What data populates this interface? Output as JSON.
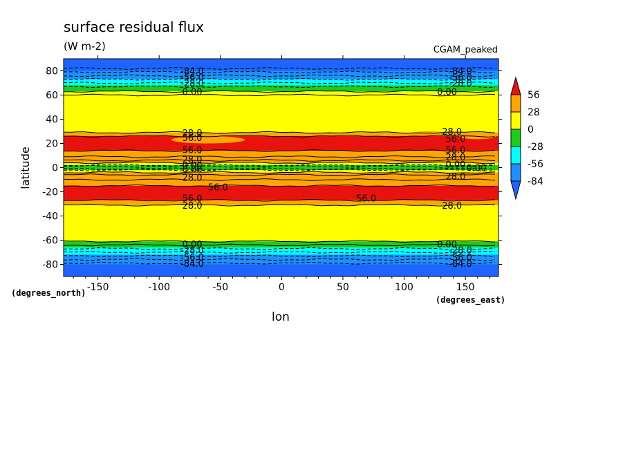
{
  "chart_data": {
    "type": "heatmap",
    "title": "surface residual flux",
    "subtitle": "(W m-2)",
    "dataset_label": "CGAM_peaked",
    "xlabel": "lon",
    "ylabel": "latitude",
    "x_units": "(degrees_east)",
    "y_units": "(degrees_north)",
    "xlim": [
      -178,
      177
    ],
    "ylim": [
      -90,
      90
    ],
    "x_ticks": [
      "-150",
      "-100",
      "-50",
      "0",
      "50",
      "100",
      "150"
    ],
    "x_tick_values": [
      -150,
      -100,
      -50,
      0,
      50,
      100,
      150
    ],
    "y_ticks": [
      "80",
      "60",
      "40",
      "20",
      "0",
      "-20",
      "-40",
      "-60",
      "-80"
    ],
    "y_tick_values": [
      80,
      60,
      40,
      20,
      0,
      -20,
      -40,
      -60,
      -80
    ],
    "colorbar": {
      "labels": [
        "56",
        "28",
        "0",
        "-28",
        "-56",
        "-84"
      ],
      "levels": [
        56,
        28,
        0,
        -28,
        -56,
        -84
      ],
      "colors": [
        "#e8120e",
        "#ffa500",
        "#ffff00",
        "#1ecc1e",
        "#00ffff",
        "#1e90ff",
        "#1e64ff"
      ]
    },
    "zonal_bands": [
      {
        "lat_from": 90,
        "lat_to": 80,
        "color": "#1e64ff"
      },
      {
        "lat_from": 80,
        "lat_to": 73,
        "color": "#1e90ff"
      },
      {
        "lat_from": 73,
        "lat_to": 68,
        "color": "#00ffff"
      },
      {
        "lat_from": 68,
        "lat_to": 63,
        "color": "#1ecc1e"
      },
      {
        "lat_from": 63,
        "lat_to": 29,
        "color": "#ffff00"
      },
      {
        "lat_from": 29,
        "lat_to": 26,
        "color": "#ffa500"
      },
      {
        "lat_from": 26,
        "lat_to": 14,
        "color": "#e8120e"
      },
      {
        "lat_from": 14,
        "lat_to": 4,
        "color": "#ffa500"
      },
      {
        "lat_from": 4,
        "lat_to": 2,
        "color": "#ffff00"
      },
      {
        "lat_from": 2,
        "lat_to": -2,
        "color": "#1ecc1e"
      },
      {
        "lat_from": -2,
        "lat_to": -4,
        "color": "#ffff00"
      },
      {
        "lat_from": -4,
        "lat_to": -15,
        "color": "#ffa500"
      },
      {
        "lat_from": -15,
        "lat_to": -27,
        "color": "#e8120e"
      },
      {
        "lat_from": -27,
        "lat_to": -31,
        "color": "#ffa500"
      },
      {
        "lat_from": -31,
        "lat_to": -61,
        "color": "#ffff00"
      },
      {
        "lat_from": -61,
        "lat_to": -66,
        "color": "#1ecc1e"
      },
      {
        "lat_from": -66,
        "lat_to": -72,
        "color": "#00ffff"
      },
      {
        "lat_from": -72,
        "lat_to": -80,
        "color": "#1e90ff"
      },
      {
        "lat_from": -80,
        "lat_to": -90,
        "color": "#1e64ff"
      }
    ],
    "orange_patches": [
      {
        "lon": -60,
        "lat": 23,
        "w": 60,
        "h": 6
      },
      {
        "lon": 120,
        "lat": 28,
        "w": 30,
        "h": 4
      },
      {
        "lon": 160,
        "lat": 26,
        "w": 30,
        "h": 5
      }
    ],
    "contours": [
      {
        "lat": 82,
        "dashed": true
      },
      {
        "lat": 79,
        "dashed": true
      },
      {
        "lat": 76,
        "dashed": true
      },
      {
        "lat": 73,
        "dashed": true
      },
      {
        "lat": 70,
        "dashed": true
      },
      {
        "lat": 67,
        "dashed": true
      },
      {
        "lat": 63,
        "dashed": false
      },
      {
        "lat": 60,
        "dashed": false
      },
      {
        "lat": 29,
        "dashed": false
      },
      {
        "lat": 26,
        "dashed": false
      },
      {
        "lat": 14,
        "dashed": false
      },
      {
        "lat": 9,
        "dashed": false
      },
      {
        "lat": 6,
        "dashed": false
      },
      {
        "lat": 4,
        "dashed": false
      },
      {
        "lat": 2,
        "dashed": true
      },
      {
        "lat": 1,
        "dashed": true
      },
      {
        "lat": -1,
        "dashed": true
      },
      {
        "lat": -2,
        "dashed": true
      },
      {
        "lat": -4,
        "dashed": false
      },
      {
        "lat": -6,
        "dashed": false
      },
      {
        "lat": -10,
        "dashed": false
      },
      {
        "lat": -15,
        "dashed": false
      },
      {
        "lat": -27,
        "dashed": false
      },
      {
        "lat": -31,
        "dashed": false
      },
      {
        "lat": -61,
        "dashed": false
      },
      {
        "lat": -64,
        "dashed": false
      },
      {
        "lat": -67,
        "dashed": true
      },
      {
        "lat": -70,
        "dashed": true
      },
      {
        "lat": -73,
        "dashed": true
      },
      {
        "lat": -76,
        "dashed": true
      },
      {
        "lat": -79,
        "dashed": true
      }
    ],
    "contour_labels": [
      {
        "text": "-84.0",
        "lon": -73,
        "lat": 80
      },
      {
        "text": "-56.0",
        "lon": -73,
        "lat": 75
      },
      {
        "text": "-28.0",
        "lon": -73,
        "lat": 70
      },
      {
        "text": "0.00",
        "lon": -73,
        "lat": 63
      },
      {
        "text": "-84.0",
        "lon": 146,
        "lat": 80
      },
      {
        "text": "-56.0",
        "lon": 146,
        "lat": 75
      },
      {
        "text": "-28.0",
        "lon": 146,
        "lat": 70
      },
      {
        "text": "0.00",
        "lon": 135,
        "lat": 63
      },
      {
        "text": "28.0",
        "lon": -73,
        "lat": 29
      },
      {
        "text": "56.0",
        "lon": -73,
        "lat": 25
      },
      {
        "text": "56.0",
        "lon": -73,
        "lat": 15
      },
      {
        "text": "28.0",
        "lon": -73,
        "lat": 7
      },
      {
        "text": "0.00",
        "lon": -73,
        "lat": 2
      },
      {
        "text": "0.00",
        "lon": -73,
        "lat": -1
      },
      {
        "text": "28.0",
        "lon": -73,
        "lat": -8
      },
      {
        "text": "56.0",
        "lon": -52,
        "lat": -16
      },
      {
        "text": "56.0",
        "lon": -73,
        "lat": -25
      },
      {
        "text": "28.0",
        "lon": -73,
        "lat": -31
      },
      {
        "text": "28.0",
        "lon": 139,
        "lat": 30
      },
      {
        "text": "56.0",
        "lon": 142,
        "lat": 24
      },
      {
        "text": "56.0",
        "lon": 142,
        "lat": 15
      },
      {
        "text": "28.0",
        "lon": 142,
        "lat": 9
      },
      {
        "text": "0.00",
        "lon": 142,
        "lat": 3
      },
      {
        "text": "0.00",
        "lon": 159,
        "lat": 0
      },
      {
        "text": "28.0",
        "lon": 142,
        "lat": -7
      },
      {
        "text": "56.0",
        "lon": 69,
        "lat": -25
      },
      {
        "text": "28.0",
        "lon": 139,
        "lat": -31
      },
      {
        "text": "0.00",
        "lon": -73,
        "lat": -63
      },
      {
        "text": "-28.0",
        "lon": -73,
        "lat": -68
      },
      {
        "text": "-56.0",
        "lon": -73,
        "lat": -74
      },
      {
        "text": "-84.0",
        "lon": -73,
        "lat": -79
      },
      {
        "text": "0.00",
        "lon": 135,
        "lat": -63
      },
      {
        "text": "-28.0",
        "lon": 146,
        "lat": -68
      },
      {
        "text": "-56.0",
        "lon": 146,
        "lat": -74
      },
      {
        "text": "-84.0",
        "lon": 146,
        "lat": -79
      }
    ]
  }
}
